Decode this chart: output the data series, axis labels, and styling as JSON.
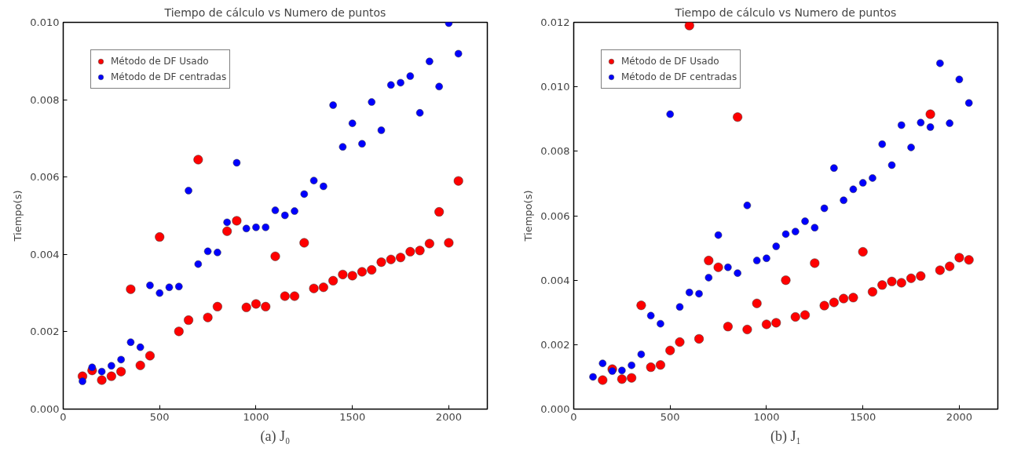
{
  "chart_data": [
    {
      "type": "scatter",
      "title": "Tiempo de cálculo vs Numero de puntos",
      "ylabel": "Tiempo(s)",
      "annotations": [
        "(a) J₀"
      ],
      "x": [
        100,
        150,
        200,
        250,
        300,
        350,
        400,
        450,
        500,
        550,
        600,
        650,
        700,
        750,
        800,
        850,
        900,
        950,
        1000,
        1050,
        1100,
        1150,
        1200,
        1250,
        1300,
        1350,
        1400,
        1450,
        1500,
        1550,
        1600,
        1650,
        1700,
        1750,
        1800,
        1850,
        1900,
        1950,
        2000,
        2050
      ],
      "series": [
        {
          "name": "Método de DF Usado",
          "color": "#ff0000",
          "values": [
            0.00085,
            0.001,
            0.00075,
            0.00085,
            0.00097,
            0.0031,
            0.00113,
            0.00138,
            0.00445,
            null,
            0.00201,
            0.0023,
            0.00645,
            0.00237,
            0.00265,
            0.0046,
            0.00487,
            0.00263,
            0.00272,
            0.00265,
            0.00395,
            0.00292,
            0.00292,
            0.0043,
            0.00312,
            0.00315,
            0.00332,
            0.00348,
            0.00345,
            0.00355,
            0.0036,
            0.0038,
            0.00387,
            0.00392,
            0.00407,
            0.0041,
            0.00428,
            0.0051,
            0.0043,
            0.0059
          ]
        },
        {
          "name": "Método de DF centradas",
          "color": "#0000ff",
          "values": [
            0.00072,
            0.00108,
            0.00097,
            0.00112,
            0.00128,
            0.00173,
            0.0016,
            0.0032,
            0.003,
            0.00315,
            0.00317,
            0.00565,
            0.00375,
            0.00408,
            0.00405,
            0.00483,
            0.00637,
            0.00467,
            0.0047,
            0.0047,
            0.00514,
            0.00501,
            0.00512,
            0.00556,
            0.00591,
            0.00576,
            0.00786,
            0.00678,
            0.00739,
            0.00686,
            0.00794,
            0.00721,
            0.00838,
            0.00844,
            0.00861,
            0.00766,
            0.00899,
            0.00834,
            0.00998,
            0.00919
          ]
        }
      ],
      "xlim": [
        0,
        2200
      ],
      "xticks": [
        0,
        500,
        1000,
        1500,
        2000
      ],
      "ylim": [
        0,
        0.01
      ],
      "yticks": [
        {
          "value": 0,
          "label": "0.000"
        },
        {
          "value": 0.002,
          "label": "0.002"
        },
        {
          "value": 0.004,
          "label": "0.004"
        },
        {
          "value": 0.006,
          "label": "0.006"
        },
        {
          "value": 0.008,
          "label": "0.008"
        },
        {
          "value": 0.01,
          "label": "0.010"
        }
      ],
      "legend": "top left",
      "marker": "circle",
      "grid": false
    },
    {
      "type": "scatter",
      "title": "Tiempo de cálculo vs Numero de puntos",
      "ylabel": "Tiempo(s)",
      "annotations": [
        "(b) J₁"
      ],
      "x": [
        100,
        150,
        200,
        250,
        300,
        350,
        400,
        450,
        500,
        550,
        600,
        650,
        700,
        750,
        800,
        850,
        900,
        950,
        1000,
        1050,
        1100,
        1150,
        1200,
        1250,
        1300,
        1350,
        1400,
        1450,
        1500,
        1550,
        1600,
        1650,
        1700,
        1750,
        1800,
        1850,
        1900,
        1950,
        2000,
        2050
      ],
      "series": [
        {
          "name": "Método de DF Usado",
          "color": "#ff0000",
          "values": [
            null,
            0.0009,
            0.00124,
            0.00093,
            0.00097,
            0.00322,
            0.0013,
            0.00137,
            0.00182,
            0.00208,
            0.0119,
            0.00218,
            0.00461,
            0.0044,
            0.00256,
            0.00906,
            0.00247,
            0.00328,
            0.00263,
            0.00268,
            0.004,
            0.00286,
            0.00292,
            0.00453,
            0.00321,
            0.00331,
            0.00343,
            0.00346,
            0.00488,
            0.00364,
            0.00385,
            0.00396,
            0.00392,
            0.00406,
            0.00413,
            0.00915,
            0.00431,
            0.00443,
            0.0047,
            0.00463
          ]
        },
        {
          "name": "Método de DF centradas",
          "color": "#0000ff",
          "values": [
            0.001,
            0.00142,
            0.00118,
            0.0012,
            0.00136,
            0.0017,
            0.0029,
            0.00265,
            0.00915,
            0.00317,
            0.00362,
            0.00358,
            0.00408,
            0.0054,
            0.0044,
            0.00422,
            0.00632,
            0.00461,
            0.00468,
            0.00505,
            0.00543,
            0.00551,
            0.00583,
            0.00563,
            0.00623,
            0.00748,
            0.00648,
            0.00682,
            0.00702,
            0.00717,
            0.00822,
            0.00757,
            0.00881,
            0.00812,
            0.00889,
            0.00875,
            0.01073,
            0.00887,
            0.01023,
            0.0095
          ]
        }
      ],
      "xlim": [
        0,
        2200
      ],
      "xticks": [
        0,
        500,
        1000,
        1500,
        2000
      ],
      "ylim": [
        0,
        0.012
      ],
      "yticks": [
        {
          "value": 0,
          "label": "0.000"
        },
        {
          "value": 0.002,
          "label": "0.002"
        },
        {
          "value": 0.004,
          "label": "0.004"
        },
        {
          "value": 0.006,
          "label": "0.006"
        },
        {
          "value": 0.008,
          "label": "0.008"
        },
        {
          "value": 0.01,
          "label": "0.010"
        },
        {
          "value": 0.012,
          "label": "0.012"
        }
      ],
      "legend": "top left",
      "marker": "circle",
      "grid": false
    }
  ]
}
